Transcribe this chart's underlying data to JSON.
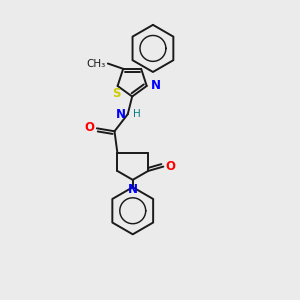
{
  "background_color": "#ebebeb",
  "bond_color": "#1a1a1a",
  "atom_colors": {
    "N": "#0000ff",
    "O": "#ff0000",
    "S": "#cccc00",
    "H": "#008080",
    "C": "#1a1a1a"
  },
  "figsize": [
    3.0,
    3.0
  ],
  "dpi": 100,
  "lw": 1.4,
  "fs": 8.5
}
